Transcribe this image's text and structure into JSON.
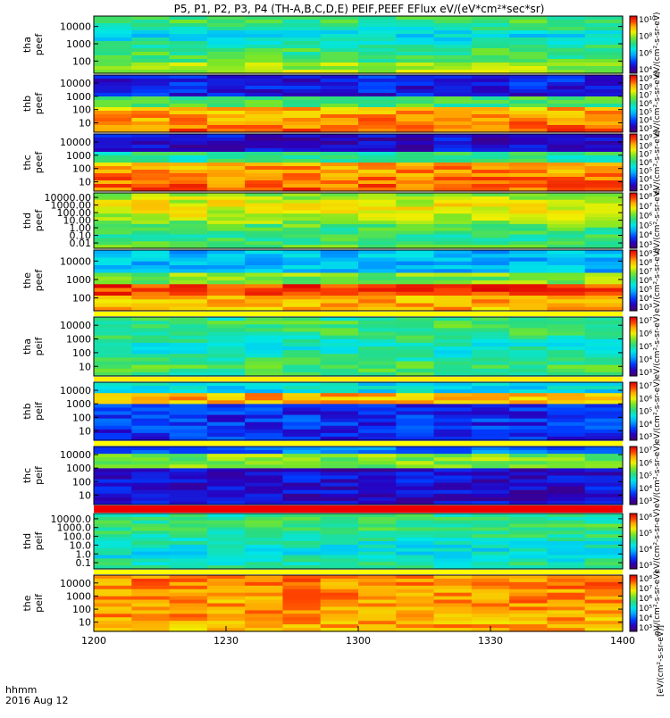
{
  "chart_data": {
    "type": "heatmap",
    "title": "P5, P1, P2, P3, P4 (TH-A,B,C,D,E) PEIF,PEEF EFlux eV/(eV*cm²*sec*sr)",
    "x_ticks": [
      "1200",
      "1230",
      "1300",
      "1330",
      "1400"
    ],
    "x_label_line1": "hhmm",
    "x_label_line2": "2016 Aug 12",
    "x_range_hhmm": [
      "1200",
      "1400"
    ],
    "colorscale": "rainbow (purple-blue-cyan-green-yellow-red)",
    "panels": [
      {
        "name": "tha peef",
        "label_line1": "tha",
        "label_line2": "peef",
        "y_scale": "log",
        "y_ticks": [
          "10000",
          "1000",
          "100"
        ],
        "colorbar_ticks": [
          "10¹⁰",
          "10⁸",
          "10⁶",
          "10⁴"
        ],
        "colorbar_label": "eV/(cm²-s-sr-eV)"
      },
      {
        "name": "thb peef",
        "label_line1": "thb",
        "label_line2": "peef",
        "y_scale": "log",
        "y_ticks": [
          "10000",
          "1000",
          "100",
          "10"
        ],
        "colorbar_ticks": [
          "10⁹",
          "10⁸",
          "10⁷",
          "10⁶",
          "10⁵",
          "10⁴",
          "10³"
        ],
        "colorbar_label": "eV/(cm²-s-sr-eV)"
      },
      {
        "name": "thc peef",
        "label_line1": "thc",
        "label_line2": "peef",
        "y_scale": "log",
        "y_ticks": [
          "10000",
          "1000",
          "100",
          "10"
        ],
        "colorbar_ticks": [
          "10⁹",
          "10⁸",
          "10⁷",
          "10⁶",
          "10⁵",
          "10⁴",
          "10³"
        ],
        "colorbar_label": "eV/(cm²-s-sr-eV)"
      },
      {
        "name": "thd peef",
        "label_line1": "thd",
        "label_line2": "peef",
        "y_scale": "log",
        "y_ticks": [
          "10000.00",
          "1000.00",
          "100.00",
          "10.00",
          "1.00",
          "0.10",
          "0.01"
        ],
        "colorbar_ticks": [
          "10⁸",
          "10⁷",
          "10⁶",
          "10⁵",
          "10⁴",
          "10³"
        ],
        "colorbar_label": "eV/(cm²-s-sr-eV)"
      },
      {
        "name": "the peef",
        "label_line1": "the",
        "label_line2": "peef",
        "y_scale": "log",
        "y_ticks": [
          "10000",
          "1000",
          "100"
        ],
        "colorbar_ticks": [
          "10⁹",
          "10⁸",
          "10⁷",
          "10⁶",
          "10⁵",
          "10⁴",
          "10³"
        ],
        "colorbar_label": "eV/(cm²-s-sr-eV)"
      },
      {
        "name": "tha peif",
        "label_line1": "tha",
        "label_line2": "peif",
        "y_scale": "log",
        "y_ticks": [
          "10000",
          "1000",
          "100",
          "10"
        ],
        "colorbar_ticks": [
          "10⁷",
          "10⁶",
          "10⁵",
          "10⁴",
          "10³"
        ],
        "colorbar_label": "eV/(cm²-s-sr-eV)"
      },
      {
        "name": "thb peif",
        "label_line1": "thb",
        "label_line2": "peif",
        "y_scale": "log",
        "y_ticks": [
          "10000",
          "1000",
          "100",
          "10"
        ],
        "colorbar_ticks": [
          "10⁷",
          "10⁶",
          "10⁵",
          "10⁴",
          "10³"
        ],
        "colorbar_label": "eV/(cm²-s-sr-eV)"
      },
      {
        "name": "thc peif",
        "label_line1": "thc",
        "label_line2": "peif",
        "y_scale": "log",
        "y_ticks": [
          "10000",
          "1000",
          "100",
          "10"
        ],
        "colorbar_ticks": [
          "10⁷",
          "10⁶",
          "10⁵",
          "10⁴",
          "10³"
        ],
        "colorbar_label": "eV/(cm²-s-sr-eV)"
      },
      {
        "name": "thd peif",
        "label_line1": "thd",
        "label_line2": "peif",
        "y_scale": "log",
        "y_ticks": [
          "10000.0",
          "1000.0",
          "100.0",
          "10.0",
          "1.0",
          "0.1"
        ],
        "colorbar_ticks": [
          "10⁶",
          "10⁵",
          "10⁴",
          "10³"
        ],
        "colorbar_label": "eV/(cm²-s-sr-eV)"
      },
      {
        "name": "the peif",
        "label_line1": "the",
        "label_line2": "peif",
        "y_scale": "log",
        "y_ticks": [
          "10000",
          "1000",
          "100",
          "10"
        ],
        "colorbar_ticks": [
          "10⁸",
          "10⁷",
          "10⁶",
          "10⁵",
          "10⁴",
          "10³"
        ],
        "colorbar_label": "eV/(cm²-s-sr-eV)"
      }
    ],
    "colorbar_bottom_label": "[eV/(cm²-s-sr-eV)]"
  }
}
